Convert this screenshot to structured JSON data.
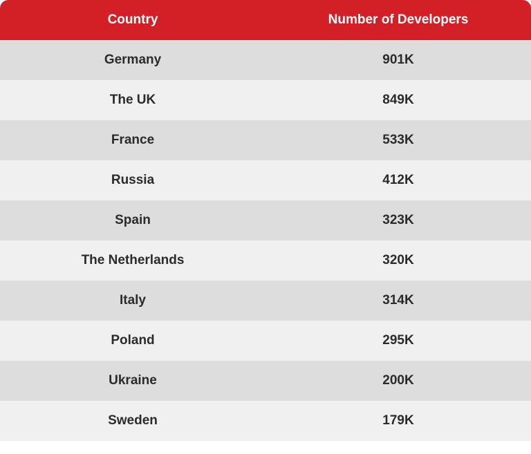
{
  "table": {
    "type": "table",
    "columns": [
      "Country",
      "Number of Developers"
    ],
    "column_widths": [
      "50%",
      "50%"
    ],
    "column_align": [
      "center",
      "center"
    ],
    "rows": [
      [
        "Germany",
        "901K"
      ],
      [
        "The UK",
        "849K"
      ],
      [
        "France",
        "533K"
      ],
      [
        "Russia",
        "412K"
      ],
      [
        "Spain",
        "323K"
      ],
      [
        "The Netherlands",
        "320K"
      ],
      [
        "Italy",
        "314K"
      ],
      [
        "Poland",
        "295K"
      ],
      [
        "Ukraine",
        "200K"
      ],
      [
        "Sweden",
        "179K"
      ]
    ],
    "header_bg": "#d31f26",
    "header_text_color": "#ffffff",
    "row_odd_bg": "#dedddd",
    "row_even_bg": "#f0f0f0",
    "cell_text_color": "#2b2b2b",
    "header_fontsize": 19,
    "cell_fontsize": 19,
    "header_fontweight": 600,
    "cell_fontweight": 600,
    "border_radius_top": 12
  }
}
